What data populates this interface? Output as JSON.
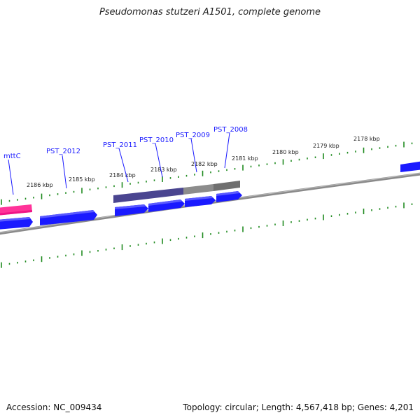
{
  "title": "Pseudomonas stutzeri A1501, complete genome",
  "footer": {
    "accession": "Accession: NC_009434",
    "summary": "Topology: circular; Length: 4,567,418 bp; Genes: 4,201"
  },
  "colors": {
    "backbone": "#8a8a8a",
    "tick": "#1f8a1f",
    "cds": "#1a1aff",
    "rna": "#ff3399",
    "label": "#1a1aff",
    "region_dark": "#4a4590",
    "region_gray": "#8c8c8c",
    "region_darkgray": "#6f6f6f"
  },
  "ticks": [
    {
      "label": "2186 kbp"
    },
    {
      "label": "2185 kbp"
    },
    {
      "label": "2184 kbp"
    },
    {
      "label": "2183 kbp"
    },
    {
      "label": "2182 kbp"
    },
    {
      "label": "2181 kbp"
    },
    {
      "label": "2180 kbp"
    },
    {
      "label": "2179 kbp"
    },
    {
      "label": "2178 kbp"
    }
  ],
  "features": [
    {
      "label": "mttC",
      "type": "rna"
    },
    {
      "label": "PST_2012",
      "type": "cds"
    },
    {
      "label": "PST_2011",
      "type": "cds"
    },
    {
      "label": "PST_2010",
      "type": "cds"
    },
    {
      "label": "PST_2009",
      "type": "cds"
    },
    {
      "label": "PST_2008",
      "type": "cds"
    }
  ]
}
